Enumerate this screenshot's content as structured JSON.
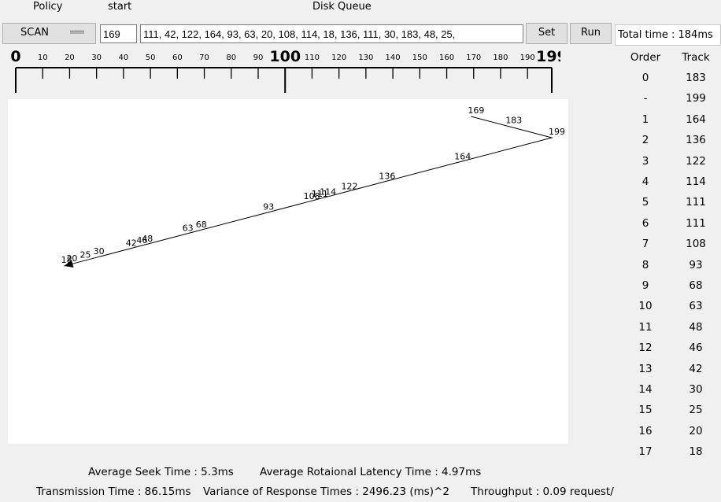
{
  "header": {
    "policy_label": "Policy",
    "start_label": "start",
    "queue_label": "Disk Queue"
  },
  "controls": {
    "policy_value": "SCAN",
    "start_value": "169",
    "queue_value": "111, 42, 122, 164, 93, 63, 20, 108, 114, 18, 136, 111, 30, 183, 48, 25,",
    "set_label": "Set",
    "run_label": "Run",
    "total_time": "Total time : 184ms"
  },
  "ruler": {
    "min": 0,
    "max": 199,
    "labels": [
      "0",
      "10",
      "20",
      "30",
      "40",
      "50",
      "60",
      "70",
      "80",
      "90",
      "100",
      "110",
      "120",
      "130",
      "140",
      "150",
      "160",
      "170",
      "180",
      "190",
      "199"
    ]
  },
  "chart_data": {
    "type": "line",
    "title": "",
    "xlabel": "",
    "ylabel": "",
    "xlim": [
      0,
      199
    ],
    "start": 169,
    "sequence": [
      169,
      183,
      199,
      164,
      136,
      122,
      114,
      111,
      111,
      108,
      93,
      68,
      63,
      48,
      46,
      42,
      30,
      25,
      20,
      18
    ],
    "point_labels": [
      "169",
      "183",
      "199",
      "164",
      "136",
      "122",
      "114",
      "111",
      "111",
      "108",
      "93",
      "68",
      "63",
      "48",
      "46",
      "42",
      "30",
      "25",
      "20",
      "18"
    ]
  },
  "table": {
    "headers": [
      "Order",
      "Track"
    ],
    "rows": [
      [
        "0",
        "183"
      ],
      [
        "-",
        "199"
      ],
      [
        "1",
        "164"
      ],
      [
        "2",
        "136"
      ],
      [
        "3",
        "122"
      ],
      [
        "4",
        "114"
      ],
      [
        "5",
        "111"
      ],
      [
        "6",
        "111"
      ],
      [
        "7",
        "108"
      ],
      [
        "8",
        "93"
      ],
      [
        "9",
        "68"
      ],
      [
        "10",
        "63"
      ],
      [
        "11",
        "48"
      ],
      [
        "12",
        "46"
      ],
      [
        "13",
        "42"
      ],
      [
        "14",
        "30"
      ],
      [
        "15",
        "25"
      ],
      [
        "16",
        "20"
      ],
      [
        "17",
        "18"
      ]
    ]
  },
  "stats": {
    "avg_seek": "Average Seek Time : 5.3ms",
    "avg_rot": "Average Rotaional Latency Time : 4.97ms",
    "transmission": "Transmission Time : 86.15ms",
    "variance": "Variance of Response Times  : 2496.23 (ms)^2",
    "throughput": "Throughput : 0.09 request/"
  }
}
